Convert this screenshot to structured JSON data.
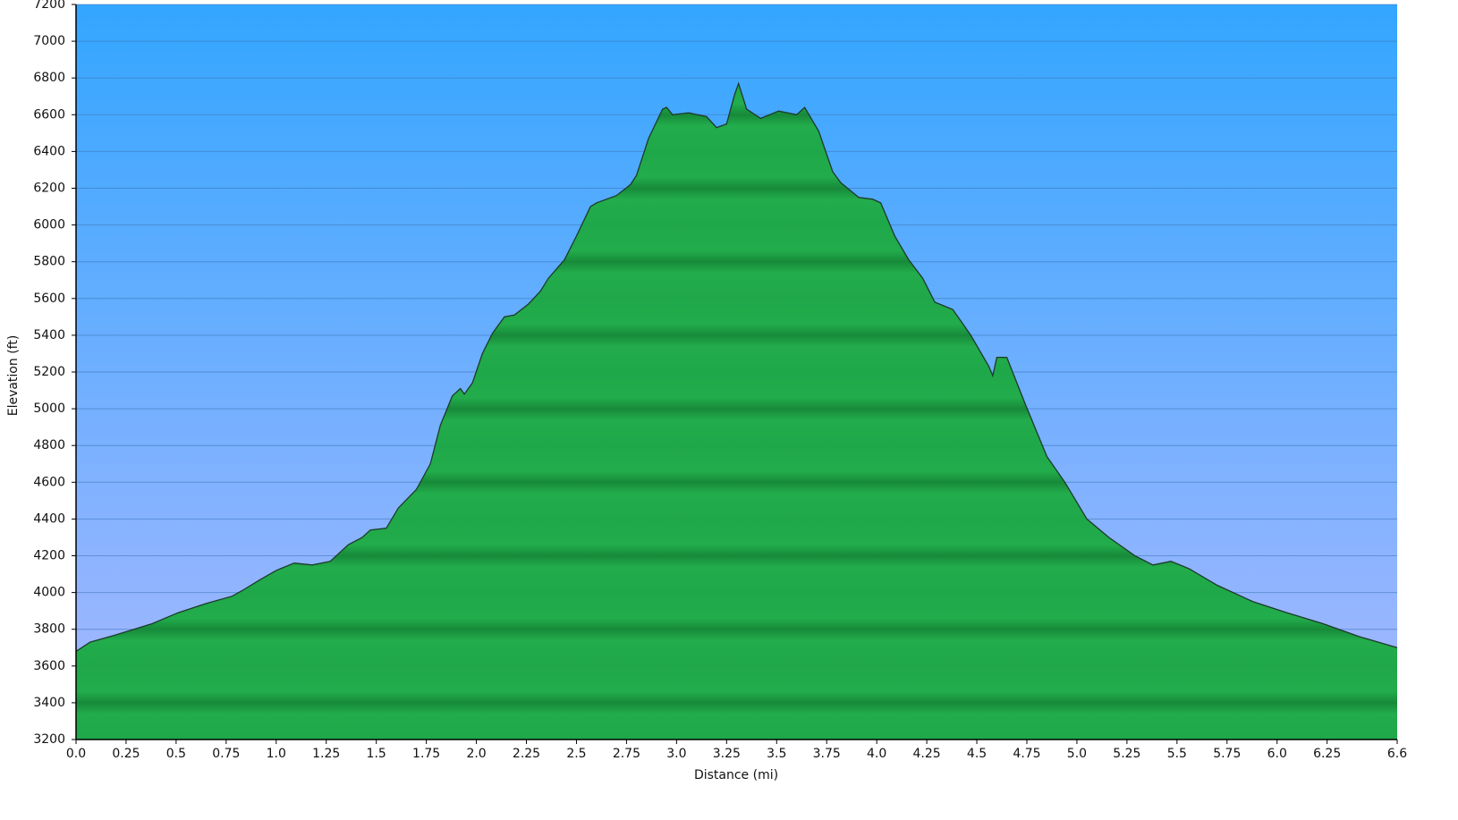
{
  "chart_data": {
    "type": "area",
    "xlabel": "Distance   (mi)",
    "ylabel": "Elevation (ft)",
    "x": [
      0,
      0.07,
      0.2,
      0.38,
      0.51,
      0.65,
      0.78,
      0.83,
      0.92,
      1.0,
      1.09,
      1.18,
      1.27,
      1.36,
      1.43,
      1.47,
      1.55,
      1.61,
      1.7,
      1.77,
      1.82,
      1.88,
      1.92,
      1.94,
      1.98,
      2.03,
      2.08,
      2.14,
      2.19,
      2.26,
      2.32,
      2.36,
      2.44,
      2.5,
      2.57,
      2.6,
      2.7,
      2.77,
      2.8,
      2.86,
      2.93,
      2.95,
      2.98,
      3.06,
      3.15,
      3.2,
      3.25,
      3.29,
      3.31,
      3.35,
      3.42,
      3.51,
      3.6,
      3.64,
      3.71,
      3.78,
      3.82,
      3.91,
      3.98,
      4.02,
      4.09,
      4.16,
      4.23,
      4.29,
      4.38,
      4.47,
      4.56,
      4.58,
      4.6,
      4.65,
      4.74,
      4.85,
      4.94,
      5.05,
      5.16,
      5.29,
      5.38,
      5.47,
      5.56,
      5.7,
      5.88,
      6.05,
      6.23,
      6.41,
      6.6
    ],
    "values": [
      3680,
      3730,
      3770,
      3830,
      3890,
      3940,
      3980,
      4010,
      4070,
      4120,
      4160,
      4150,
      4170,
      4260,
      4300,
      4340,
      4350,
      4460,
      4560,
      4700,
      4910,
      5070,
      5110,
      5080,
      5140,
      5300,
      5410,
      5500,
      5510,
      5570,
      5640,
      5710,
      5810,
      5940,
      6100,
      6120,
      6160,
      6220,
      6270,
      6470,
      6630,
      6640,
      6600,
      6610,
      6590,
      6530,
      6550,
      6710,
      6770,
      6630,
      6580,
      6620,
      6600,
      6640,
      6510,
      6290,
      6230,
      6150,
      6140,
      6120,
      5940,
      5810,
      5710,
      5580,
      5540,
      5400,
      5230,
      5180,
      5280,
      5280,
      5030,
      4740,
      4600,
      4400,
      4300,
      4200,
      4150,
      4170,
      4130,
      4040,
      3950,
      3890,
      3830,
      3760,
      3700
    ],
    "color": "#1fa84a",
    "xlim": [
      0,
      6.6
    ],
    "xticks": [
      {
        "value": 0,
        "label": "0.0"
      },
      0.25,
      0.5,
      0.75,
      {
        "value": 1,
        "label": "1.0"
      },
      1.25,
      1.5,
      1.75,
      {
        "value": 2,
        "label": "2.0"
      },
      2.25,
      2.5,
      2.75,
      {
        "value": 3,
        "label": "3.0"
      },
      3.25,
      3.5,
      3.75,
      {
        "value": 4,
        "label": "4.0"
      },
      4.25,
      4.5,
      4.75,
      {
        "value": 5,
        "label": "5.0"
      },
      5.25,
      5.5,
      5.75,
      {
        "value": 6,
        "label": "6.0"
      },
      6.25,
      6.6
    ],
    "ylim": [
      3200,
      7200
    ],
    "yticks": [
      3200,
      3400,
      3600,
      3800,
      4000,
      4200,
      4400,
      4600,
      4800,
      5000,
      5200,
      5400,
      5600,
      5800,
      6000,
      6200,
      6400,
      6600,
      6800,
      7000,
      7200
    ],
    "grid": true
  }
}
